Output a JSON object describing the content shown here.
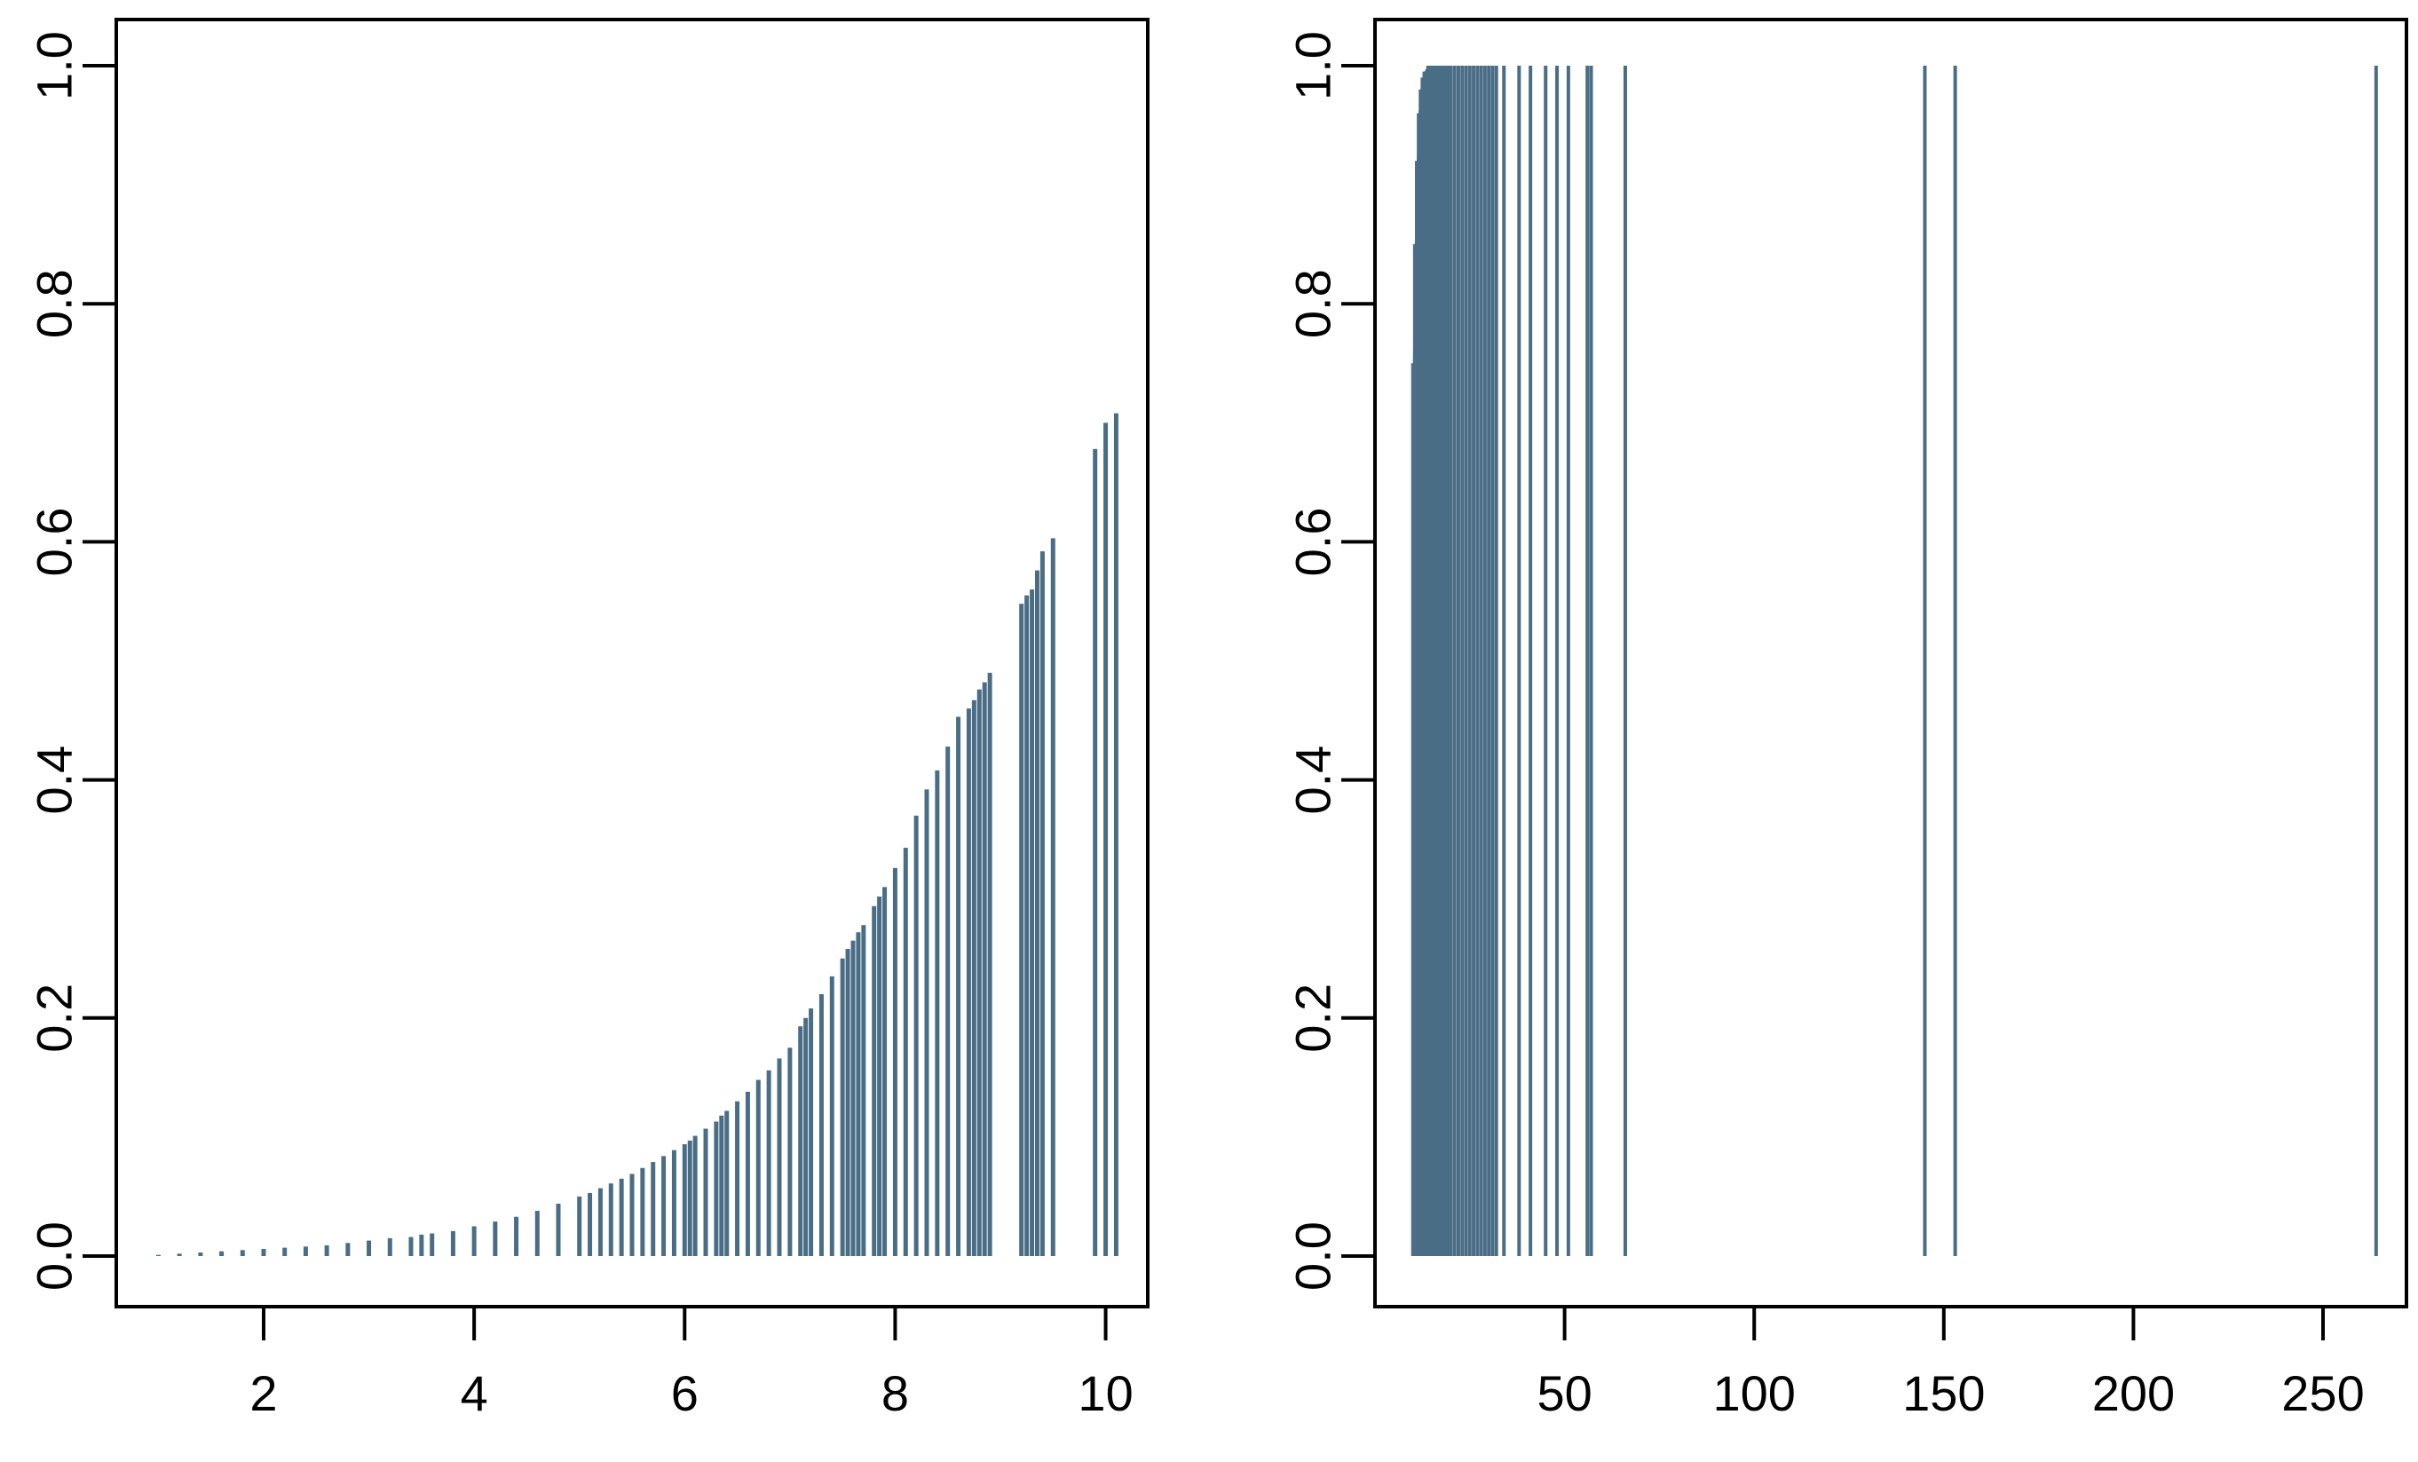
{
  "colors": {
    "bar": "#4a6d86",
    "axis": "#000000",
    "background": "#ffffff"
  },
  "chart_data": [
    {
      "type": "bar",
      "mark": "vertical-lines",
      "xlim": [
        0.6,
        10.4
      ],
      "ylim": [
        0.0,
        1.0
      ],
      "xticks": [
        2,
        4,
        6,
        8,
        10
      ],
      "xtick_labels": [
        "2",
        "4",
        "6",
        "8",
        "10"
      ],
      "yticks": [
        0.0,
        0.2,
        0.4,
        0.6,
        0.8,
        1.0
      ],
      "ytick_labels": [
        "0.0",
        "0.2",
        "0.4",
        "0.6",
        "0.8",
        "1.0"
      ],
      "grid": false,
      "x": [
        1.0,
        1.2,
        1.4,
        1.6,
        1.8,
        2.0,
        2.2,
        2.4,
        2.6,
        2.8,
        3.0,
        3.2,
        3.4,
        3.5,
        3.6,
        3.8,
        4.0,
        4.2,
        4.4,
        4.6,
        4.8,
        5.0,
        5.1,
        5.2,
        5.3,
        5.4,
        5.5,
        5.6,
        5.7,
        5.8,
        5.9,
        6.0,
        6.05,
        6.1,
        6.2,
        6.3,
        6.35,
        6.4,
        6.5,
        6.6,
        6.7,
        6.8,
        6.9,
        7.0,
        7.1,
        7.15,
        7.2,
        7.3,
        7.4,
        7.5,
        7.55,
        7.6,
        7.65,
        7.7,
        7.8,
        7.85,
        7.9,
        8.0,
        8.1,
        8.2,
        8.3,
        8.4,
        8.5,
        8.6,
        8.7,
        8.75,
        8.8,
        8.85,
        8.9,
        9.2,
        9.25,
        9.3,
        9.35,
        9.4,
        9.5,
        9.9,
        10.0,
        10.1
      ],
      "values": [
        0.001,
        0.002,
        0.003,
        0.004,
        0.005,
        0.006,
        0.007,
        0.008,
        0.009,
        0.011,
        0.013,
        0.015,
        0.016,
        0.018,
        0.019,
        0.021,
        0.025,
        0.029,
        0.033,
        0.038,
        0.044,
        0.05,
        0.053,
        0.057,
        0.061,
        0.065,
        0.069,
        0.074,
        0.079,
        0.084,
        0.089,
        0.094,
        0.097,
        0.101,
        0.107,
        0.113,
        0.118,
        0.122,
        0.13,
        0.138,
        0.148,
        0.156,
        0.166,
        0.175,
        0.193,
        0.2,
        0.208,
        0.22,
        0.235,
        0.25,
        0.258,
        0.265,
        0.272,
        0.278,
        0.294,
        0.302,
        0.31,
        0.326,
        0.343,
        0.37,
        0.392,
        0.408,
        0.428,
        0.453,
        0.46,
        0.467,
        0.476,
        0.482,
        0.49,
        0.548,
        0.555,
        0.56,
        0.576,
        0.592,
        0.603,
        0.678,
        0.7,
        0.708
      ]
    },
    {
      "type": "bar",
      "mark": "vertical-lines",
      "xlim": [
        0.0,
        272.0
      ],
      "ylim": [
        0.0,
        1.0
      ],
      "xticks": [
        50,
        100,
        150,
        200,
        250
      ],
      "xtick_labels": [
        "50",
        "100",
        "150",
        "200",
        "250"
      ],
      "yticks": [
        0.0,
        0.2,
        0.4,
        0.6,
        0.8,
        1.0
      ],
      "ytick_labels": [
        "0.0",
        "0.2",
        "0.4",
        "0.6",
        "0.8",
        "1.0"
      ],
      "grid": false,
      "x": [
        10,
        10.5,
        11,
        11.5,
        12,
        12.5,
        13,
        14,
        15,
        16,
        17,
        18,
        19,
        20,
        21,
        22,
        23,
        24,
        25,
        26,
        27,
        28,
        29,
        30,
        31,
        32,
        34,
        38,
        41,
        45,
        48,
        51,
        56,
        57,
        66,
        145,
        153,
        264
      ],
      "values": [
        0.75,
        0.85,
        0.92,
        0.96,
        0.98,
        0.99,
        0.995,
        1.0,
        1.0,
        1.0,
        1.0,
        1.0,
        1.0,
        1.0,
        1.0,
        1.0,
        1.0,
        1.0,
        1.0,
        1.0,
        1.0,
        1.0,
        1.0,
        1.0,
        1.0,
        1.0,
        1.0,
        1.0,
        1.0,
        1.0,
        1.0,
        1.0,
        1.0,
        1.0,
        1.0,
        1.0,
        1.0,
        1.0
      ]
    }
  ]
}
